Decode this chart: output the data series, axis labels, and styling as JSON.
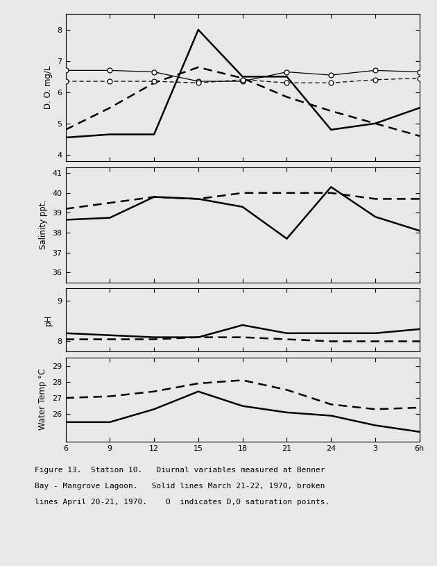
{
  "x_positions": [
    0,
    3,
    6,
    9,
    12,
    15,
    18,
    21,
    24
  ],
  "do_solid": [
    4.55,
    4.65,
    4.65,
    8.0,
    6.5,
    6.5,
    4.8,
    5.0,
    5.5
  ],
  "do_dashed": [
    4.8,
    5.5,
    6.3,
    6.8,
    6.45,
    5.85,
    5.4,
    5.0,
    4.6
  ],
  "do_sat_solid": [
    6.7,
    6.7,
    6.65,
    6.35,
    6.35,
    6.65,
    6.55,
    6.7,
    6.65
  ],
  "do_sat_dashed": [
    6.35,
    6.35,
    6.35,
    6.3,
    6.4,
    6.3,
    6.3,
    6.4,
    6.45
  ],
  "sal_solid": [
    38.65,
    38.75,
    39.8,
    39.7,
    39.3,
    37.7,
    40.3,
    38.8,
    38.1
  ],
  "sal_dashed": [
    39.2,
    39.5,
    39.8,
    39.7,
    40.0,
    40.0,
    40.0,
    39.7,
    39.7
  ],
  "ph_solid": [
    8.2,
    8.15,
    8.1,
    8.1,
    8.4,
    8.2,
    8.2,
    8.2,
    8.3
  ],
  "ph_dashed": [
    8.05,
    8.05,
    8.05,
    8.1,
    8.1,
    8.05,
    8.0,
    8.0,
    8.0
  ],
  "temp_solid": [
    25.5,
    25.5,
    26.3,
    27.4,
    26.5,
    26.1,
    25.9,
    25.3,
    24.9
  ],
  "temp_dashed": [
    27.0,
    27.1,
    27.4,
    27.9,
    28.1,
    27.5,
    26.6,
    26.3,
    26.4
  ],
  "do_ylim": [
    3.8,
    8.5
  ],
  "do_yticks": [
    4.0,
    5.0,
    6.0,
    7.0,
    8.0
  ],
  "do_ylabel": "D. O. mg/L",
  "sal_ylim": [
    35.5,
    41.3
  ],
  "sal_yticks": [
    36,
    37,
    38,
    39,
    40,
    41
  ],
  "sal_ylabel": "Salinity ppt.",
  "ph_ylim": [
    7.75,
    9.3
  ],
  "ph_yticks": [
    8.0,
    9.0
  ],
  "ph_ylabel": "pH",
  "temp_ylim": [
    24.3,
    29.5
  ],
  "temp_yticks": [
    26,
    27,
    28,
    29
  ],
  "temp_ylabel": "Water Temp °C",
  "x_tick_labels": [
    "6",
    "9",
    "12",
    "15",
    "18",
    "21",
    "24",
    "3",
    "6h"
  ],
  "caption_line1": "Figure 13.  Station 10.   Diurnal variables measured at Benner",
  "caption_line2": "Bay - Mangrove Lagoon.   Solid lines March 21-22, 1970, broken",
  "caption_line3": "lines April 20-21, 1970.    O  indicates D,0 saturation points.",
  "bg_color": "#e8e8e8",
  "plot_bg": "#e8e8e8"
}
